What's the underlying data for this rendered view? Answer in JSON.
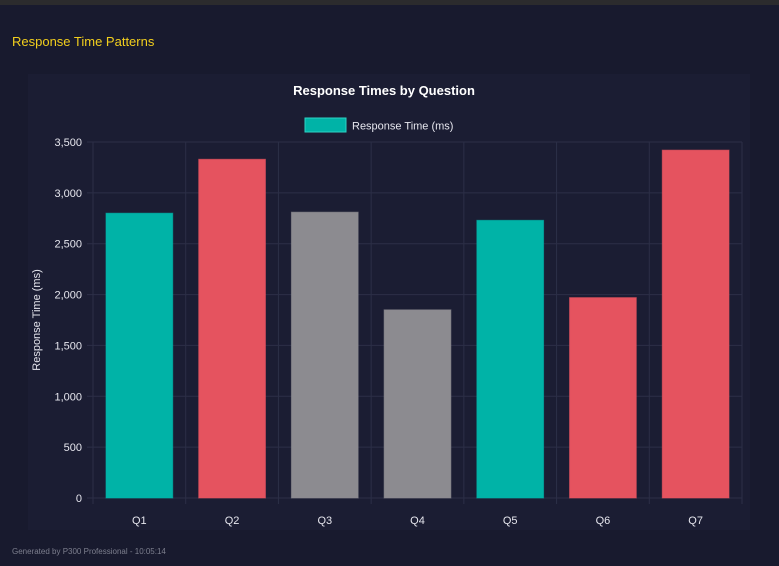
{
  "section_title": "Response Time Patterns",
  "footer": "Generated by P300 Professional - 10:05:14",
  "colors": {
    "background": "#181a2e",
    "accent": "#f2cf1d",
    "teal": "#00b3a7",
    "red": "#e5535f",
    "gray": "#8c8b90"
  },
  "chart_data": {
    "type": "bar",
    "title": "Response Times by Question",
    "xlabel": "",
    "ylabel": "Response Time (ms)",
    "ylim": [
      0,
      3500
    ],
    "yticks": [
      0,
      500,
      1000,
      1500,
      2000,
      2500,
      3000,
      3500
    ],
    "ytick_labels": [
      "0",
      "500",
      "1,000",
      "1,500",
      "2,000",
      "2,500",
      "3,000",
      "3,500"
    ],
    "categories": [
      "Q1",
      "Q2",
      "Q3",
      "Q4",
      "Q5",
      "Q6",
      "Q7"
    ],
    "values": [
      2800,
      3330,
      2810,
      1850,
      2730,
      1970,
      3420
    ],
    "bar_colors": [
      "#00b3a7",
      "#e5535f",
      "#8c8b90",
      "#8c8b90",
      "#00b3a7",
      "#e5535f",
      "#e5535f"
    ],
    "legend": {
      "label": "Response Time (ms)",
      "color": "#00b3a7",
      "placement": "top"
    },
    "grid": true
  }
}
